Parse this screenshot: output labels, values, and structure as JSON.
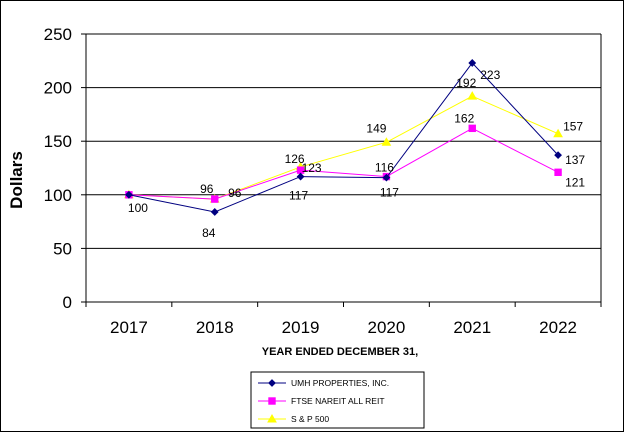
{
  "chart_data": {
    "type": "line",
    "title": "",
    "xlabel": "YEAR ENDED DECEMBER 31,",
    "ylabel": "Dollars",
    "categories": [
      "2017",
      "2018",
      "2019",
      "2020",
      "2021",
      "2022"
    ],
    "ylim": [
      0,
      250
    ],
    "yticks": [
      "0",
      "50",
      "100",
      "150",
      "200",
      "250"
    ],
    "grid": true,
    "legend_position": "bottom",
    "series": [
      {
        "name": "UMH PROPERTIES, INC.",
        "values": [
          100,
          84,
          117,
          116,
          223,
          137
        ],
        "color": "#000080",
        "marker": "diamond",
        "labels": [
          "100",
          "84",
          "117",
          "116",
          "223",
          "137"
        ]
      },
      {
        "name": "FTSE NAREIT ALL REIT",
        "values": [
          100,
          96,
          123,
          117,
          162,
          121
        ],
        "color": "#ff00ff",
        "marker": "square",
        "labels": [
          "",
          "96",
          "123",
          "117",
          "162",
          "121"
        ]
      },
      {
        "name": "S & P 500",
        "values": [
          100,
          96,
          126,
          149,
          192,
          157
        ],
        "color": "#ffff00",
        "marker": "triangle",
        "labels": [
          "",
          "96",
          "126",
          "149",
          "192",
          "157"
        ]
      }
    ]
  }
}
